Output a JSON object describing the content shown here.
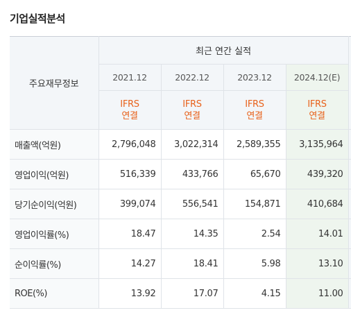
{
  "section": {
    "title": "기업실적분석"
  },
  "table": {
    "label_header": "주요재무정보",
    "group_header": "최근 연간 실적",
    "years": [
      {
        "label": "2021.12",
        "estimate": false
      },
      {
        "label": "2022.12",
        "estimate": false
      },
      {
        "label": "2023.12",
        "estimate": false
      },
      {
        "label": "2024.12(E)",
        "estimate": true
      }
    ],
    "standard": {
      "line1": "IFRS",
      "line2": "연결"
    },
    "rows": [
      {
        "label": "매출액(억원)",
        "values": [
          "2,796,048",
          "3,022,314",
          "2,589,355",
          "3,135,964"
        ]
      },
      {
        "label": "영업이익(억원)",
        "values": [
          "516,339",
          "433,766",
          "65,670",
          "439,320"
        ]
      },
      {
        "label": "당기순이익(억원)",
        "values": [
          "399,074",
          "556,541",
          "154,871",
          "410,684"
        ]
      },
      {
        "label": "영업이익률(%)",
        "values": [
          "18.47",
          "14.35",
          "2.54",
          "14.01"
        ]
      },
      {
        "label": "순이익률(%)",
        "values": [
          "14.27",
          "18.41",
          "5.98",
          "13.10"
        ]
      },
      {
        "label": "ROE(%)",
        "values": [
          "13.92",
          "17.07",
          "4.15",
          "11.00"
        ]
      }
    ]
  },
  "colors": {
    "ifrs_accent": "#e8611a",
    "estimate_bg": "#eef5ee",
    "header_bg": "#f3f6f9"
  }
}
